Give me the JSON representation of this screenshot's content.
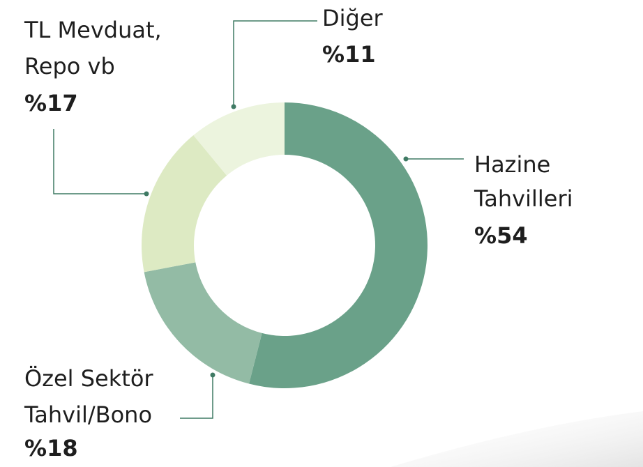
{
  "chart_data": {
    "type": "donut",
    "categories": [
      [
        "Hazine",
        "Tahvilleri"
      ],
      [
        "Özel Sektör",
        "Tahvil/Bono"
      ],
      [
        "TL Mevduat,",
        "Repo vb"
      ],
      [
        "Diğer"
      ]
    ],
    "values": [
      54,
      18,
      17,
      11
    ],
    "value_labels": [
      "%54",
      "%18",
      "%17",
      "%11"
    ],
    "colors": [
      "#6aa189",
      "#93bba5",
      "#ddeac3",
      "#ecf4de"
    ]
  }
}
